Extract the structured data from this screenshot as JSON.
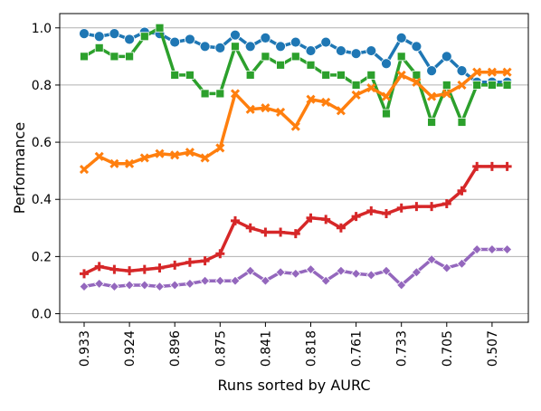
{
  "chart_data": {
    "type": "line",
    "title": "",
    "xlabel": "Runs sorted by AURC",
    "ylabel": "Performance",
    "ylim": [
      -0.03,
      1.05
    ],
    "grid": "horizontal",
    "legend": "none",
    "x_tick_labels": [
      "0.933",
      "0.924",
      "0.896",
      "0.875",
      "0.841",
      "0.818",
      "0.761",
      "0.733",
      "0.705",
      "0.507"
    ],
    "x_tick_positions": [
      0,
      3,
      6,
      9,
      12,
      15,
      18,
      21,
      24,
      27
    ],
    "y_ticks": [
      0.0,
      0.2,
      0.4,
      0.6,
      0.8,
      1.0
    ],
    "y_tick_labels": [
      "0.0",
      "0.2",
      "0.4",
      "0.6",
      "0.8",
      "1.0"
    ],
    "series": [
      {
        "color": "#1f77b4",
        "marker": "circle",
        "values": [
          0.98,
          0.97,
          0.98,
          0.96,
          0.985,
          0.98,
          0.95,
          0.96,
          0.935,
          0.93,
          0.975,
          0.935,
          0.965,
          0.935,
          0.95,
          0.92,
          0.95,
          0.92,
          0.91,
          0.92,
          0.875,
          0.965,
          0.935,
          0.85,
          0.9,
          0.85,
          0.81,
          0.81,
          0.81
        ]
      },
      {
        "color": "#2ca02c",
        "marker": "square",
        "values": [
          0.9,
          0.93,
          0.9,
          0.9,
          0.97,
          1.0,
          0.835,
          0.835,
          0.77,
          0.77,
          0.935,
          0.835,
          0.9,
          0.87,
          0.9,
          0.87,
          0.835,
          0.835,
          0.8,
          0.835,
          0.7,
          0.9,
          0.835,
          0.67,
          0.8,
          0.67,
          0.8,
          0.8,
          0.8
        ]
      },
      {
        "color": "#ff7f0e",
        "marker": "x",
        "values": [
          0.505,
          0.55,
          0.525,
          0.525,
          0.545,
          0.56,
          0.555,
          0.565,
          0.545,
          0.58,
          0.77,
          0.715,
          0.72,
          0.705,
          0.655,
          0.75,
          0.74,
          0.71,
          0.765,
          0.79,
          0.76,
          0.835,
          0.81,
          0.76,
          0.77,
          0.8,
          0.845,
          0.845,
          0.845
        ]
      },
      {
        "color": "#d62728",
        "marker": "plus",
        "values": [
          0.14,
          0.165,
          0.155,
          0.15,
          0.155,
          0.16,
          0.17,
          0.18,
          0.185,
          0.21,
          0.325,
          0.3,
          0.285,
          0.285,
          0.28,
          0.335,
          0.33,
          0.3,
          0.34,
          0.36,
          0.35,
          0.37,
          0.375,
          0.375,
          0.385,
          0.43,
          0.515,
          0.515,
          0.515
        ]
      },
      {
        "color": "#9467bd",
        "marker": "diamond",
        "values": [
          0.095,
          0.105,
          0.095,
          0.1,
          0.1,
          0.095,
          0.1,
          0.105,
          0.115,
          0.115,
          0.115,
          0.15,
          0.115,
          0.145,
          0.14,
          0.155,
          0.115,
          0.15,
          0.14,
          0.135,
          0.15,
          0.1,
          0.145,
          0.19,
          0.16,
          0.175,
          0.225,
          0.225,
          0.225
        ]
      }
    ]
  }
}
